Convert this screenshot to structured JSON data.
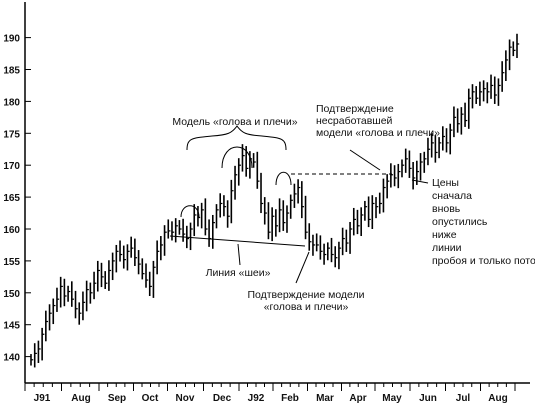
{
  "chart_data": {
    "type": "ohlc",
    "title": "",
    "xlabel": "",
    "ylabel": "",
    "ylim": [
      135,
      195
    ],
    "y_ticks": [
      140,
      145,
      150,
      155,
      160,
      165,
      170,
      175,
      180,
      185,
      190
    ],
    "x_tick_labels": [
      "J91",
      "Aug",
      "Sep",
      "Oct",
      "Nov",
      "Dec",
      "J92",
      "Feb",
      "Mar",
      "Apr",
      "May",
      "Jun",
      "Jul",
      "Aug"
    ],
    "grid": false,
    "series": [
      {
        "closes": [
          139.5,
          140.5,
          141.2,
          143.5,
          145.5,
          146.8,
          148,
          149,
          151,
          149.5,
          150.2,
          149,
          147.5,
          146.8,
          148.5,
          150.5,
          150,
          151.5,
          153.5,
          152.5,
          151.5,
          153.5,
          155,
          156.5,
          156,
          155.2,
          156.5,
          157,
          155.5,
          154.5,
          153,
          152,
          151,
          154,
          156.5,
          157.5,
          159.5,
          159.7,
          159.5,
          160.5,
          160,
          159.2,
          158.5,
          160,
          162.2,
          161.8,
          163,
          160,
          158.5,
          161,
          163,
          164,
          163.5,
          162,
          166,
          168.5,
          170,
          171.5,
          169.5,
          171,
          170.5,
          167.5,
          164,
          162.5,
          159.5,
          162,
          160.5,
          163,
          161,
          162.5,
          164.5,
          165.5,
          166.5,
          163.5,
          159.5,
          158,
          157.5,
          157.5,
          156.5,
          156,
          157,
          156,
          155.5,
          157,
          158.5,
          157.8,
          160,
          161.5,
          160.5,
          162.2,
          163.5,
          161.5,
          164,
          163.5,
          164,
          166.5,
          167.5,
          168.5,
          168,
          169,
          170,
          171,
          169.5,
          168,
          169,
          170.5,
          171,
          172.5,
          173.5,
          172,
          173.5,
          174.5,
          173.5,
          175.5,
          177.5,
          176.5,
          178,
          177,
          180.5,
          181.5,
          180.5,
          181.5,
          182,
          181.5,
          182.5,
          181,
          182.5,
          184.5,
          186.5,
          188.5,
          188,
          189
        ]
      }
    ],
    "annotations": {
      "hs_model": "Модель «голова и плечи»",
      "neck_line": "Линия «шеи»",
      "hs_confirm": "Подтверждение модели «голова и плечи»",
      "failed_confirm": "Подтверждение несработавшей модели «голова и плечи»",
      "prices_note": "Цены сначала вновь опустились ниже линии пробоя и только потом стали расти"
    }
  }
}
